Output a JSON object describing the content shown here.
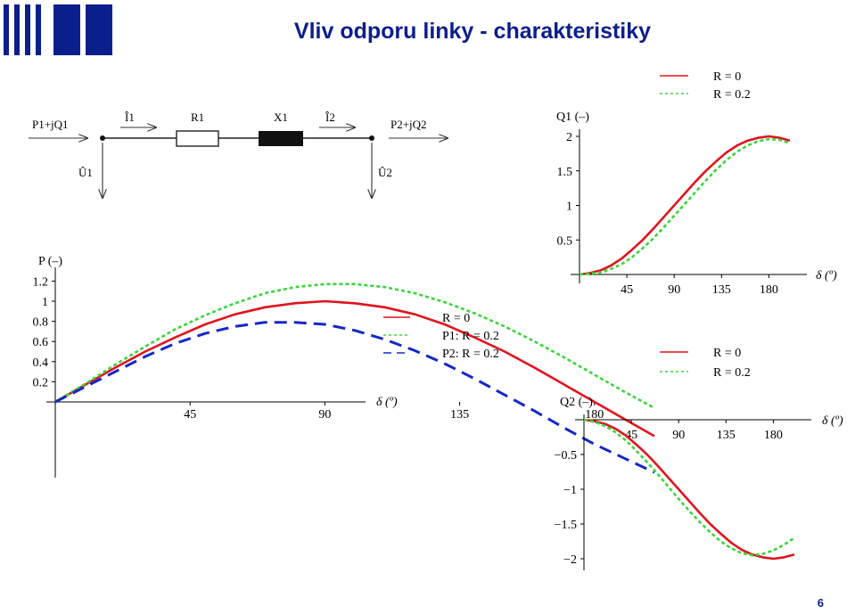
{
  "slide": {
    "title": "Vliv odporu linky - charakteristiky",
    "page_number": "6"
  },
  "circuit": {
    "labels": {
      "s1": "P1+jQ1",
      "i1": "Î1",
      "r1": "R1",
      "x1": "X1",
      "i2": "Î2",
      "s2": "P2+jQ2",
      "u1": "Û1",
      "u2": "Û2"
    }
  },
  "colors": {
    "r0": "#e0141e",
    "r02": "#3ad63a",
    "p2": "#1428c8",
    "title": "#0b1f8c"
  },
  "chart_data": [
    {
      "id": "p",
      "type": "line",
      "ylabel": "P (–)",
      "xlabel": "δ (º)",
      "x_ticks": [
        45,
        90,
        135,
        180
      ],
      "y_ticks": [
        0.2,
        0.4,
        0.6,
        0.8,
        1,
        1.2
      ],
      "xlim": [
        0,
        200
      ],
      "ylim": [
        -0.8,
        1.25
      ],
      "legend_placement": "right",
      "series": [
        {
          "name": "R = 0",
          "style": "solid",
          "color": "#e0141e",
          "x": [
            0,
            10,
            20,
            30,
            40,
            50,
            60,
            70,
            80,
            90,
            100,
            110,
            120,
            130,
            140,
            150,
            160,
            170,
            180,
            190,
            200
          ],
          "y": [
            0,
            0.17,
            0.34,
            0.5,
            0.64,
            0.77,
            0.87,
            0.94,
            0.98,
            1.0,
            0.98,
            0.94,
            0.87,
            0.77,
            0.64,
            0.5,
            0.34,
            0.17,
            0,
            -0.17,
            -0.34
          ]
        },
        {
          "name": "P1: R = 0.2",
          "style": "dotted",
          "color": "#3ad63a",
          "x": [
            0,
            10,
            20,
            30,
            40,
            50,
            60,
            70,
            80,
            90,
            100,
            110,
            120,
            130,
            140,
            150,
            160,
            170,
            180,
            190,
            200
          ],
          "y": [
            0,
            0.18,
            0.37,
            0.55,
            0.72,
            0.86,
            0.98,
            1.08,
            1.14,
            1.17,
            1.17,
            1.14,
            1.08,
            0.99,
            0.88,
            0.75,
            0.6,
            0.44,
            0.27,
            0.1,
            -0.06
          ]
        },
        {
          "name": "P2: R = 0.2",
          "style": "dashed",
          "color": "#1428c8",
          "x": [
            0,
            10,
            20,
            30,
            40,
            50,
            60,
            70,
            80,
            90,
            100,
            110,
            120,
            130,
            140,
            150,
            160,
            170,
            180,
            190,
            200
          ],
          "y": [
            0,
            0.15,
            0.3,
            0.45,
            0.58,
            0.68,
            0.75,
            0.79,
            0.79,
            0.77,
            0.71,
            0.62,
            0.51,
            0.38,
            0.23,
            0.07,
            -0.09,
            -0.26,
            -0.42,
            -0.56,
            -0.7
          ]
        }
      ]
    },
    {
      "id": "q1",
      "type": "line",
      "ylabel": "Q1 (–)",
      "xlabel": "δ (º)",
      "x_ticks": [
        45,
        90,
        135,
        180
      ],
      "y_ticks": [
        0.5,
        1,
        1.5,
        2
      ],
      "xlim": [
        0,
        200
      ],
      "ylim": [
        0,
        2.05
      ],
      "legend_placement": "top",
      "series": [
        {
          "name": "R = 0",
          "style": "solid",
          "color": "#e0141e",
          "x": [
            0,
            10,
            20,
            30,
            40,
            50,
            60,
            70,
            80,
            90,
            100,
            110,
            120,
            130,
            140,
            150,
            160,
            170,
            180,
            190,
            200
          ],
          "y": [
            0,
            0.02,
            0.06,
            0.13,
            0.23,
            0.36,
            0.5,
            0.66,
            0.83,
            1.0,
            1.17,
            1.34,
            1.5,
            1.64,
            1.77,
            1.87,
            1.94,
            1.98,
            2.0,
            1.98,
            1.94
          ]
        },
        {
          "name": "R = 0.2",
          "style": "dotted",
          "color": "#3ad63a",
          "x": [
            0,
            10,
            20,
            30,
            40,
            50,
            60,
            70,
            80,
            90,
            100,
            110,
            120,
            130,
            140,
            150,
            160,
            170,
            180,
            190,
            200
          ],
          "y": [
            0,
            0.01,
            0.03,
            0.08,
            0.15,
            0.25,
            0.38,
            0.52,
            0.68,
            0.85,
            1.02,
            1.19,
            1.36,
            1.52,
            1.66,
            1.78,
            1.87,
            1.93,
            1.96,
            1.95,
            1.9
          ]
        }
      ]
    },
    {
      "id": "q2",
      "type": "line",
      "ylabel": "Q2 (–)",
      "xlabel": "δ (º)",
      "x_ticks": [
        45,
        90,
        135,
        180
      ],
      "y_ticks": [
        -0.5,
        -1,
        -1.5,
        -2
      ],
      "xlim": [
        0,
        200
      ],
      "ylim": [
        -2.05,
        0
      ],
      "legend_placement": "top",
      "series": [
        {
          "name": "R = 0",
          "style": "solid",
          "color": "#e0141e",
          "x": [
            0,
            10,
            20,
            30,
            40,
            50,
            60,
            70,
            80,
            90,
            100,
            110,
            120,
            130,
            140,
            150,
            160,
            170,
            180,
            190,
            200
          ],
          "y": [
            0,
            -0.02,
            -0.06,
            -0.13,
            -0.23,
            -0.36,
            -0.5,
            -0.66,
            -0.83,
            -1.0,
            -1.17,
            -1.34,
            -1.5,
            -1.64,
            -1.77,
            -1.87,
            -1.94,
            -1.98,
            -2.0,
            -1.98,
            -1.94
          ]
        },
        {
          "name": "R = 0.2",
          "style": "dotted",
          "color": "#3ad63a",
          "x": [
            0,
            10,
            20,
            30,
            40,
            50,
            60,
            70,
            80,
            90,
            100,
            110,
            120,
            130,
            140,
            150,
            160,
            170,
            180,
            190,
            200
          ],
          "y": [
            0,
            -0.03,
            -0.09,
            -0.18,
            -0.3,
            -0.45,
            -0.61,
            -0.78,
            -0.96,
            -1.14,
            -1.31,
            -1.47,
            -1.62,
            -1.75,
            -1.85,
            -1.92,
            -1.95,
            -1.93,
            -1.88,
            -1.8,
            -1.7
          ]
        }
      ]
    }
  ]
}
